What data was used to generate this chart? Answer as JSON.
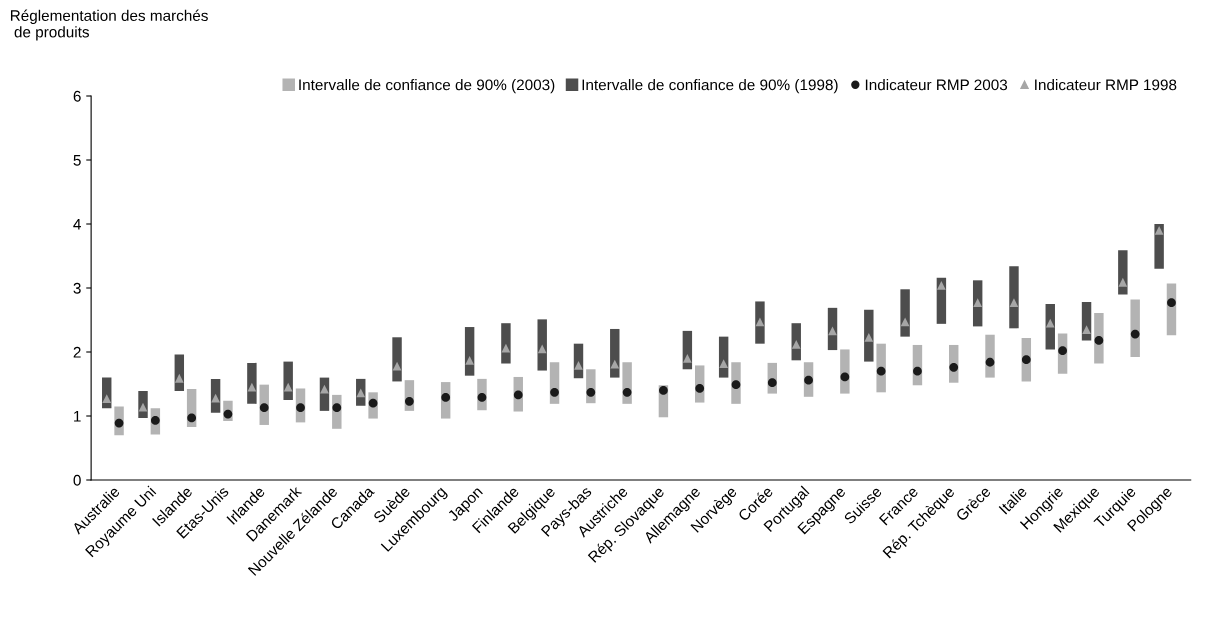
{
  "chart_data": {
    "type": "bar",
    "ylabel": "Réglementation des marchés\n de produits",
    "categories": [
      "Australie",
      "Royaume Uni",
      "Islande",
      "Etas-Unis",
      "Irlande",
      "Danemark",
      "Nouvelle Zélande",
      "Canada",
      "Suède",
      "Luxembourg",
      "Japon",
      "Finlande",
      "Belgique",
      "Pays-bas",
      "Austriche",
      "Rép. Slovaque",
      "Allemagne",
      "Norvège",
      "Corée",
      "Portugal",
      "Espagne",
      "Suisse",
      "France",
      "Rép. Tchèque",
      "Grèce",
      "Italie",
      "Hongrie",
      "Mexique",
      "Turquie",
      "Pologne"
    ],
    "series": [
      {
        "name": "Intervalle de confiance de 90% (2003)",
        "color": "#b3b3b3",
        "base": [
          0.7,
          0.71,
          0.83,
          0.92,
          0.86,
          0.9,
          0.8,
          0.96,
          1.08,
          0.96,
          1.09,
          1.07,
          1.19,
          1.2,
          1.19,
          0.98,
          1.21,
          1.19,
          1.35,
          1.3,
          1.35,
          1.37,
          1.48,
          1.52,
          1.6,
          1.54,
          1.66,
          1.82,
          1.92,
          2.26
        ],
        "values": [
          0.45,
          0.41,
          0.59,
          0.32,
          0.63,
          0.53,
          0.53,
          0.41,
          0.48,
          0.57,
          0.49,
          0.54,
          0.65,
          0.53,
          0.65,
          0.5,
          0.58,
          0.65,
          0.48,
          0.54,
          0.69,
          0.76,
          0.63,
          0.59,
          0.67,
          0.68,
          0.63,
          0.79,
          0.9,
          0.81
        ]
      },
      {
        "name": "Intervalle de confiance de 90% (1998)",
        "color": "#4d4d4d",
        "base": [
          1.12,
          0.97,
          1.39,
          1.05,
          1.19,
          1.25,
          1.08,
          1.16,
          1.54,
          null,
          1.63,
          1.82,
          1.71,
          1.59,
          1.6,
          null,
          1.73,
          1.6,
          2.13,
          1.87,
          2.03,
          1.85,
          2.24,
          2.44,
          2.4,
          2.37,
          2.04,
          2.18,
          2.9,
          3.3
        ],
        "values": [
          0.48,
          0.42,
          0.57,
          0.53,
          0.64,
          0.6,
          0.52,
          0.42,
          0.69,
          null,
          0.76,
          0.63,
          0.8,
          0.54,
          0.76,
          null,
          0.6,
          0.64,
          0.66,
          0.58,
          0.66,
          0.81,
          0.74,
          0.72,
          0.72,
          0.97,
          0.71,
          0.6,
          0.69,
          0.7
        ]
      },
      {
        "name": "Indicateur RMP 2003",
        "type": "scatter",
        "marker": "circle",
        "color": "#1a1a1a",
        "values": [
          0.89,
          0.93,
          0.97,
          1.03,
          1.13,
          1.13,
          1.13,
          1.2,
          1.23,
          1.29,
          1.29,
          1.33,
          1.37,
          1.37,
          1.37,
          1.4,
          1.43,
          1.49,
          1.52,
          1.56,
          1.61,
          1.7,
          1.7,
          1.76,
          1.84,
          1.88,
          2.02,
          2.18,
          2.28,
          2.77
        ]
      },
      {
        "name": "Indicateur RMP 1998",
        "type": "scatter",
        "marker": "triangle",
        "color": "#a6a6a6",
        "values": [
          1.27,
          1.14,
          1.59,
          1.28,
          1.45,
          1.45,
          1.42,
          1.36,
          1.78,
          null,
          1.87,
          2.06,
          2.05,
          1.79,
          1.81,
          null,
          1.9,
          1.82,
          2.47,
          2.12,
          2.33,
          2.23,
          2.47,
          3.04,
          2.77,
          2.77,
          2.45,
          2.35,
          3.09,
          3.9
        ]
      }
    ],
    "ylim": [
      0,
      6
    ],
    "yticks": [
      0,
      1,
      2,
      3,
      4,
      5,
      6
    ],
    "grid": false,
    "legend": "top"
  }
}
